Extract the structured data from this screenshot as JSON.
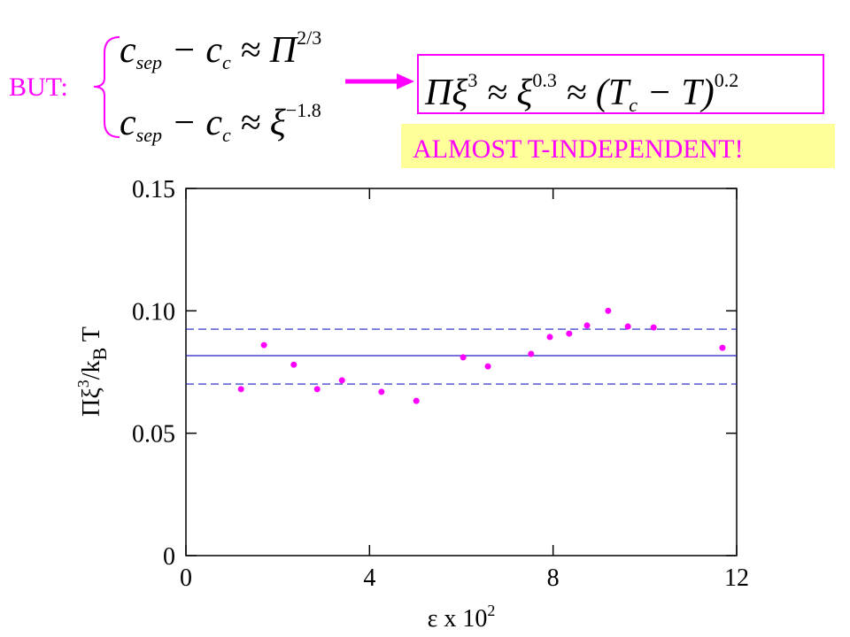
{
  "chart_data": {
    "type": "scatter",
    "x_label": [
      "ε x 10",
      "2"
    ],
    "y_label": [
      "Πξ",
      "3",
      "/k",
      "B",
      " T"
    ],
    "x": [
      1.2,
      1.7,
      2.35,
      2.86,
      3.4,
      4.26,
      5.02,
      6.04,
      6.58,
      7.52,
      7.93,
      8.35,
      8.74,
      9.2,
      9.63,
      10.19,
      11.69
    ],
    "values": [
      0.068,
      0.086,
      0.078,
      0.068,
      0.0716,
      0.0669,
      0.0632,
      0.081,
      0.0773,
      0.0824,
      0.0893,
      0.0907,
      0.094,
      0.1,
      0.0936,
      0.0932,
      0.0849
    ],
    "color": "#ff00ff",
    "hlines": [
      {
        "value": 0.0817,
        "style": "solid"
      },
      {
        "value": 0.0925,
        "style": "dashed"
      },
      {
        "value": 0.0701,
        "style": "dashed"
      }
    ],
    "line_color": "#2020c0",
    "xlim": [
      0,
      12
    ],
    "xticks": [
      0,
      4,
      8,
      12
    ],
    "ylim": [
      0,
      0.15
    ],
    "yticks": [
      0,
      0.05,
      {
        "value": 0.1,
        "label": "0.10"
      },
      0.15
    ]
  },
  "annotations": {
    "but": "BUT:",
    "note": "ALMOST T-INDEPENDENT!",
    "eq1": [
      {
        "t": "c",
        "pos": "base"
      },
      {
        "t": "sep",
        "pos": "sub"
      },
      {
        "t": " − c",
        "pos": "base"
      },
      {
        "t": "c",
        "pos": "sub"
      },
      {
        "t": " ≈ Π",
        "pos": "base"
      },
      {
        "t": "2/3",
        "pos": "sup"
      }
    ],
    "eq2": [
      {
        "t": "c",
        "pos": "base"
      },
      {
        "t": "sep",
        "pos": "sub"
      },
      {
        "t": " − c",
        "pos": "base"
      },
      {
        "t": "c",
        "pos": "sub"
      },
      {
        "t": " ≈ ξ",
        "pos": "base"
      },
      {
        "t": "−1.8",
        "pos": "sup"
      }
    ],
    "eq3": [
      {
        "t": "Πξ",
        "pos": "base"
      },
      {
        "t": "3",
        "pos": "sup"
      },
      {
        "t": " ≈ ξ",
        "pos": "base"
      },
      {
        "t": "0.3",
        "pos": "sup"
      },
      {
        "t": " ≈ (T",
        "pos": "base"
      },
      {
        "t": "c",
        "pos": "sub"
      },
      {
        "t": " − T)",
        "pos": "base"
      },
      {
        "t": "0.2",
        "pos": "sup"
      }
    ]
  }
}
